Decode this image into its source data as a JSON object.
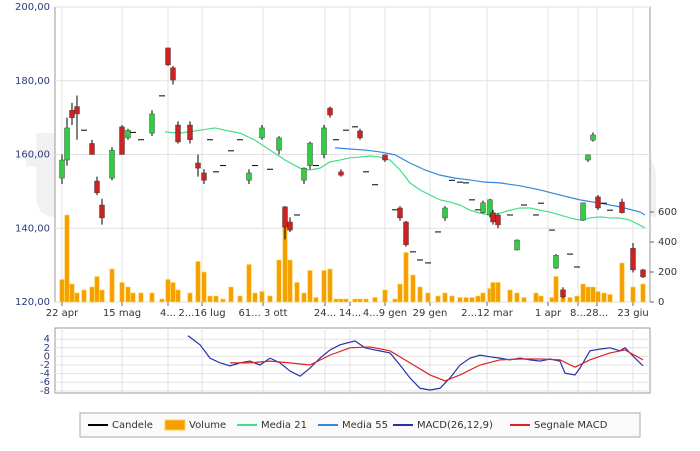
{
  "watermark": "teleborsa",
  "chart_data": [
    {
      "type": "candlestick",
      "xlim": [
        0,
        119
      ],
      "xticks": [
        {
          "value": 1.4,
          "label": "22 apr"
        },
        {
          "value": 13.4,
          "label": "15 mag"
        },
        {
          "value": 22.6,
          "label": "4..."
        },
        {
          "value": 29.4,
          "label": "2...16 lug"
        },
        {
          "value": 41.6,
          "label": "61... 3 ott"
        },
        {
          "value": 54,
          "label": "24..."
        },
        {
          "value": 59,
          "label": "14..."
        },
        {
          "value": 66,
          "label": "4...9 gen"
        },
        {
          "value": 75,
          "label": "29 gen"
        },
        {
          "value": 86.4,
          "label": "2...12 mar"
        },
        {
          "value": 98.6,
          "label": "1 apr"
        },
        {
          "value": 104.6,
          "label": "8..."
        },
        {
          "value": 108.4,
          "label": "28..."
        },
        {
          "value": 115.6,
          "label": "23 giu"
        }
      ],
      "ylim": [
        120,
        200
      ],
      "yticks": [
        {
          "value": 120,
          "label": "120,00"
        },
        {
          "value": 140,
          "label": "140,00"
        },
        {
          "value": 160,
          "label": "160,00"
        },
        {
          "value": 180,
          "label": "180,00"
        },
        {
          "value": 200,
          "label": "200,00"
        }
      ],
      "y2lim": [
        0,
        1967
      ],
      "y2ticks": [
        0,
        200,
        400,
        600
      ],
      "grid": true,
      "series": [
        {
          "name": "Candele",
          "type": "candlestick",
          "color": "#000000",
          "up_color": "#33cc44",
          "down_color": "#cc2222",
          "x": [
            1.4,
            2.4,
            3.4,
            4.4,
            5.8,
            7.4,
            8.4,
            9.4,
            11.4,
            13.4,
            14.6,
            15.6,
            17.2,
            19.4,
            21.4,
            22.6,
            23.6,
            24.6,
            27,
            28.6,
            29.8,
            31,
            32.2,
            33.6,
            35.2,
            37,
            38.8,
            40,
            41.4,
            43,
            44.8,
            46,
            47,
            48.4,
            49.8,
            51,
            52.2,
            53.8,
            55,
            56.2,
            57.2,
            58.2,
            60,
            61,
            62.2,
            64,
            66,
            68,
            69,
            70.2,
            71.6,
            73,
            74.6,
            76.6,
            78,
            79.4,
            81,
            82.2,
            83.4,
            84.6,
            85.6,
            87,
            87.6,
            88.6,
            91,
            92.4,
            93.8,
            96.2,
            97.2,
            99.4,
            100.2,
            101.6,
            103,
            104.4,
            105.6,
            106.6,
            107.6,
            108.6,
            109.8,
            111,
            113.4,
            115.6,
            117.6
          ],
          "open": [
            153.6,
            158.5,
            172,
            173,
            166.6,
            163,
            152.8,
            146.3,
            153.6,
            167.5,
            164.5,
            166,
            164,
            165.8,
            175.9,
            188.9,
            183.5,
            168,
            168,
            157.7,
            155,
            164,
            155.3,
            157,
            161,
            164,
            153,
            157,
            164.5,
            156,
            161.2,
            145.8,
            141.7,
            143.6,
            153,
            157,
            157,
            160,
            172.6,
            164,
            155.3,
            166.6,
            167.5,
            166.4,
            155.3,
            151.8,
            159.9,
            145,
            145.5,
            141.7,
            133.6,
            131.4,
            130.6,
            139,
            142.8,
            153,
            152.5,
            152.3,
            147.7,
            145,
            144.2,
            143.6,
            144.2,
            143.6,
            143.6,
            134.1,
            146.3,
            143.6,
            146.8,
            139.5,
            129.2,
            123.3,
            133,
            129.5,
            142.2,
            158.5,
            163.9,
            148.5,
            146.8,
            144.9,
            147.1,
            134.6,
            128.7
          ],
          "high": [
            160,
            170,
            174,
            176,
            166.6,
            164,
            154,
            148,
            162,
            168,
            167,
            166,
            164,
            172,
            175.9,
            189,
            184,
            169,
            169,
            160,
            156,
            164,
            155.3,
            157,
            161,
            164,
            156,
            157,
            168,
            156,
            165,
            146,
            143,
            143.6,
            156.5,
            163.5,
            157,
            168,
            173,
            164,
            156,
            166.6,
            167.5,
            167,
            155.3,
            151.8,
            160,
            145,
            146,
            142,
            133.6,
            131.4,
            130.6,
            139,
            146,
            153,
            152.5,
            152.3,
            147.7,
            145,
            147.5,
            148,
            145,
            144,
            143.6,
            137,
            146.3,
            143.6,
            146.8,
            139.5,
            133,
            124,
            133,
            129.5,
            147,
            160,
            166,
            149,
            146.8,
            144.9,
            148,
            136,
            129
          ],
          "low": [
            152,
            157,
            168,
            164,
            166.6,
            160,
            149,
            141,
            153,
            160,
            164,
            166,
            164,
            165,
            175.9,
            184,
            179,
            163,
            163,
            154,
            152,
            164,
            155.3,
            157,
            161,
            164,
            152,
            157,
            164,
            156,
            160,
            137,
            139,
            143.6,
            152,
            156,
            157,
            159,
            170,
            164,
            154,
            166.6,
            167.5,
            164,
            155.3,
            151.8,
            158,
            145,
            142,
            135,
            133.6,
            131.4,
            130.6,
            139,
            142,
            153,
            152.5,
            152.3,
            147.7,
            145,
            144,
            143,
            141,
            140,
            143.6,
            134,
            146.3,
            143.6,
            146.8,
            139.5,
            129,
            121,
            133,
            129.5,
            142,
            158,
            163.5,
            145,
            146.8,
            144.9,
            144,
            128,
            126.5
          ],
          "close": [
            158.5,
            167.2,
            170,
            171,
            166.6,
            160,
            149.6,
            142.8,
            161.2,
            160,
            166.6,
            166,
            164,
            171,
            175.9,
            184.3,
            180.2,
            163.4,
            164,
            156.3,
            153,
            164,
            155.3,
            157,
            161,
            164,
            155,
            157,
            167.2,
            156,
            164.5,
            140.3,
            139.5,
            143.6,
            156.3,
            163.1,
            157,
            167.2,
            170.7,
            164,
            154.4,
            166.6,
            167.5,
            164.5,
            155.3,
            151.8,
            158.5,
            145,
            142.8,
            135.5,
            133.6,
            131.4,
            130.6,
            139,
            145.5,
            153,
            152.5,
            152.3,
            147.7,
            145,
            146.9,
            147.7,
            141.7,
            140.9,
            143.6,
            136.8,
            146.3,
            143.6,
            146.8,
            139.5,
            132.7,
            121.4,
            133,
            129.5,
            146.9,
            159.9,
            165.3,
            145.5,
            146.8,
            144.9,
            144.2,
            128.7,
            126.8
          ]
        },
        {
          "name": "Volume",
          "type": "bar",
          "axis": "y2",
          "color": "#f5a000",
          "x": [
            1.4,
            2.4,
            3.4,
            4.4,
            5.8,
            7.4,
            8.4,
            9.4,
            11.4,
            13.4,
            14.6,
            15.6,
            17.2,
            19.4,
            21.4,
            22.6,
            23.6,
            24.6,
            27,
            28.6,
            29.8,
            31,
            32.2,
            33.6,
            35.2,
            37,
            38.8,
            40,
            41.4,
            43,
            44.8,
            46,
            47,
            48.4,
            49.8,
            51,
            52.2,
            53.8,
            55,
            56.2,
            57.2,
            58.2,
            60,
            61,
            62.2,
            64,
            66,
            68,
            69,
            70.2,
            71.6,
            73,
            74.6,
            76.6,
            78,
            79.4,
            81,
            82.2,
            83.4,
            84.6,
            85.6,
            87,
            87.6,
            88.6,
            91,
            92.4,
            93.8,
            96.2,
            97.2,
            99.4,
            100.2,
            101.6,
            103,
            104.4,
            105.6,
            106.6,
            107.6,
            108.6,
            109.8,
            111,
            113.4,
            115.6,
            117.6
          ],
          "values": [
            150,
            580,
            120,
            60,
            80,
            100,
            170,
            80,
            220,
            130,
            100,
            60,
            60,
            60,
            20,
            150,
            130,
            80,
            60,
            270,
            200,
            40,
            40,
            20,
            100,
            40,
            250,
            60,
            70,
            40,
            280,
            550,
            280,
            130,
            60,
            210,
            30,
            210,
            220,
            20,
            20,
            20,
            20,
            20,
            20,
            30,
            80,
            20,
            120,
            330,
            180,
            100,
            60,
            40,
            60,
            40,
            30,
            30,
            30,
            40,
            60,
            90,
            130,
            130,
            80,
            60,
            30,
            60,
            40,
            30,
            170,
            60,
            30,
            40,
            120,
            100,
            100,
            70,
            60,
            50,
            260,
            100,
            120
          ]
        },
        {
          "name": "Media 21",
          "type": "line",
          "color": "#44dd88",
          "x": [
            22,
            25,
            29,
            32,
            34,
            37,
            40,
            43,
            46,
            49,
            51,
            53,
            55,
            57,
            59,
            61,
            63,
            65,
            67,
            69,
            71,
            73,
            75,
            77,
            79,
            81,
            83,
            85,
            87,
            89,
            91,
            93,
            95,
            97,
            99,
            101,
            103,
            105,
            107,
            109,
            111,
            113,
            115,
            118
          ],
          "values": [
            166.1,
            165.8,
            166.6,
            167.2,
            166.6,
            165.8,
            163.9,
            161.2,
            158.5,
            156.3,
            155.8,
            156.3,
            158.0,
            158.5,
            159.1,
            159.3,
            159.6,
            159.3,
            158.5,
            155.8,
            152.3,
            150.4,
            149.0,
            147.7,
            147.1,
            146.3,
            144.9,
            144.1,
            143.6,
            144.1,
            144.9,
            145.5,
            145.5,
            144.9,
            144.4,
            143.6,
            142.8,
            142.2,
            142.8,
            143.1,
            142.8,
            142.8,
            142.2,
            140.1
          ]
        },
        {
          "name": "Media 55",
          "type": "line",
          "color": "#3388dd",
          "x": [
            56,
            59,
            62,
            65,
            68,
            71,
            74,
            77,
            80,
            83,
            86,
            89,
            93,
            97,
            101,
            105,
            109,
            113,
            117,
            118
          ],
          "values": [
            161.8,
            161.5,
            161.2,
            160.7,
            159.9,
            157.7,
            155.8,
            154.4,
            153.6,
            153.1,
            152.5,
            152.3,
            151.5,
            150.4,
            149.0,
            147.7,
            146.8,
            145.8,
            144.4,
            143.6
          ]
        }
      ]
    },
    {
      "type": "line",
      "ylim": [
        -8.5,
        6.6
      ],
      "yticks": [
        4,
        2,
        0,
        -2,
        -4,
        -6,
        -8
      ],
      "grid": true,
      "series": [
        {
          "name": "MACD(26,12,9)",
          "type": "line",
          "color": "#2233aa",
          "x": [
            26.6,
            29,
            31,
            33,
            35,
            37,
            39,
            41,
            43,
            45,
            47,
            49,
            51,
            53,
            55,
            57,
            60,
            62,
            64,
            67,
            69,
            71,
            73,
            75,
            77,
            79,
            81,
            83,
            85,
            87,
            89,
            91,
            93,
            95,
            97,
            99,
            101,
            102,
            104,
            105,
            107,
            109,
            111,
            113,
            114,
            116,
            117.6
          ],
          "values": [
            4.8,
            2.7,
            -0.4,
            -1.5,
            -2.2,
            -1.5,
            -1.1,
            -2,
            -0.4,
            -1.5,
            -3.4,
            -4.6,
            -2.7,
            -0.4,
            1.5,
            2.7,
            3.6,
            2,
            1.5,
            0.8,
            -2,
            -5,
            -7.4,
            -7.8,
            -7.4,
            -5,
            -2,
            -0.4,
            0.3,
            -0.1,
            -0.4,
            -0.8,
            -0.4,
            -0.8,
            -1.1,
            -0.6,
            -1.1,
            -3.9,
            -4.3,
            -2.7,
            1.3,
            1.7,
            2,
            1.3,
            2,
            -0.4,
            -2.2
          ]
        },
        {
          "name": "Segnale MACD",
          "type": "line",
          "color": "#dd2222",
          "x": [
            35,
            39,
            43,
            47,
            51,
            55,
            59,
            63,
            67,
            71,
            75,
            78,
            81,
            85,
            89,
            93,
            97,
            101,
            104,
            107,
            111,
            114,
            117.6
          ],
          "values": [
            -1.5,
            -1.5,
            -1.1,
            -1.5,
            -2,
            0.3,
            2,
            2.2,
            1.3,
            -1.5,
            -4.3,
            -5.7,
            -4.3,
            -2,
            -0.8,
            -0.6,
            -0.6,
            -0.8,
            -2.5,
            -0.8,
            0.8,
            1.5,
            -0.8
          ]
        }
      ]
    }
  ]
}
